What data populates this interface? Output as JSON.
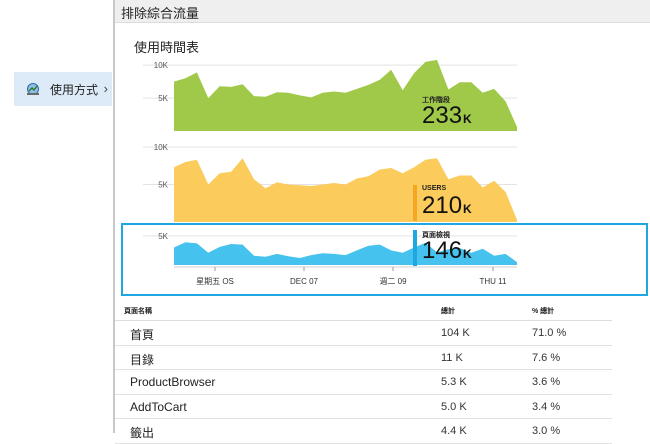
{
  "left_nav": {
    "item_label": "使用方式"
  },
  "blade": {
    "title": "排除綜合流量",
    "panel_title": "使用時間表"
  },
  "colors": {
    "sessions": "#a0c94a",
    "users": "#fbcb5c",
    "pageviews": "#45c2ee",
    "selection": "#1ea7e1"
  },
  "chart_data": {
    "type": "area",
    "x_ticks": [
      "星期五 OS",
      "DEC 07",
      "週二 09",
      "THU 11"
    ],
    "series": [
      {
        "name": "工作階段",
        "color": "#a0c94a",
        "y_ticks": [
          "10K",
          "5K"
        ],
        "ymax": 12000,
        "values": [
          7500,
          8000,
          8900,
          5000,
          6800,
          6700,
          7100,
          5300,
          5200,
          5900,
          5800,
          5400,
          5100,
          5800,
          6000,
          5800,
          6400,
          7000,
          7800,
          9300,
          6200,
          8800,
          10500,
          10800,
          6300,
          7400,
          7400,
          5800,
          6400,
          4500,
          600
        ]
      },
      {
        "name": "USERS",
        "color": "#fbcb5c",
        "y_ticks": [
          "10K",
          "5K"
        ],
        "ymax": 12000,
        "values": [
          7300,
          8000,
          8300,
          5000,
          6500,
          6700,
          8500,
          5700,
          4500,
          5300,
          5000,
          4900,
          4800,
          5000,
          5200,
          5000,
          5800,
          6100,
          7000,
          7200,
          6500,
          7300,
          8300,
          8500,
          5700,
          6200,
          6200,
          4600,
          5500,
          4000,
          300
        ]
      },
      {
        "name": "頁面檢視",
        "color": "#45c2ee",
        "y_ticks": [
          "5K"
        ],
        "ymax": 6000,
        "values": [
          3000,
          3900,
          3700,
          2100,
          3100,
          3600,
          3500,
          1600,
          1400,
          1900,
          1500,
          1200,
          1700,
          2000,
          1900,
          1700,
          2500,
          3300,
          3500,
          2500,
          2100,
          3000,
          3800,
          2200,
          2700,
          2900,
          2100,
          2800,
          1600,
          1900,
          500
        ]
      }
    ]
  },
  "metrics": [
    {
      "label": "工作階段",
      "value": "233",
      "unit": "K"
    },
    {
      "label": "USERS",
      "value": "210",
      "unit": "K"
    },
    {
      "label": "頁面檢視",
      "value": "146",
      "unit": "K"
    }
  ],
  "table": {
    "headers": [
      "頁面名稱",
      "總計",
      "% 總計"
    ],
    "rows": [
      {
        "name": "首頁",
        "total": "104 K",
        "pct": "71.0 %"
      },
      {
        "name": "目錄",
        "total": "11 K",
        "pct": "7.6 %"
      },
      {
        "name": "ProductBrowser",
        "total": "5.3 K",
        "pct": "3.6 %"
      },
      {
        "name": "AddToCart",
        "total": "5.0 K",
        "pct": "3.4 %"
      },
      {
        "name": "籤出",
        "total": "4.4 K",
        "pct": "3.0 %"
      }
    ]
  }
}
